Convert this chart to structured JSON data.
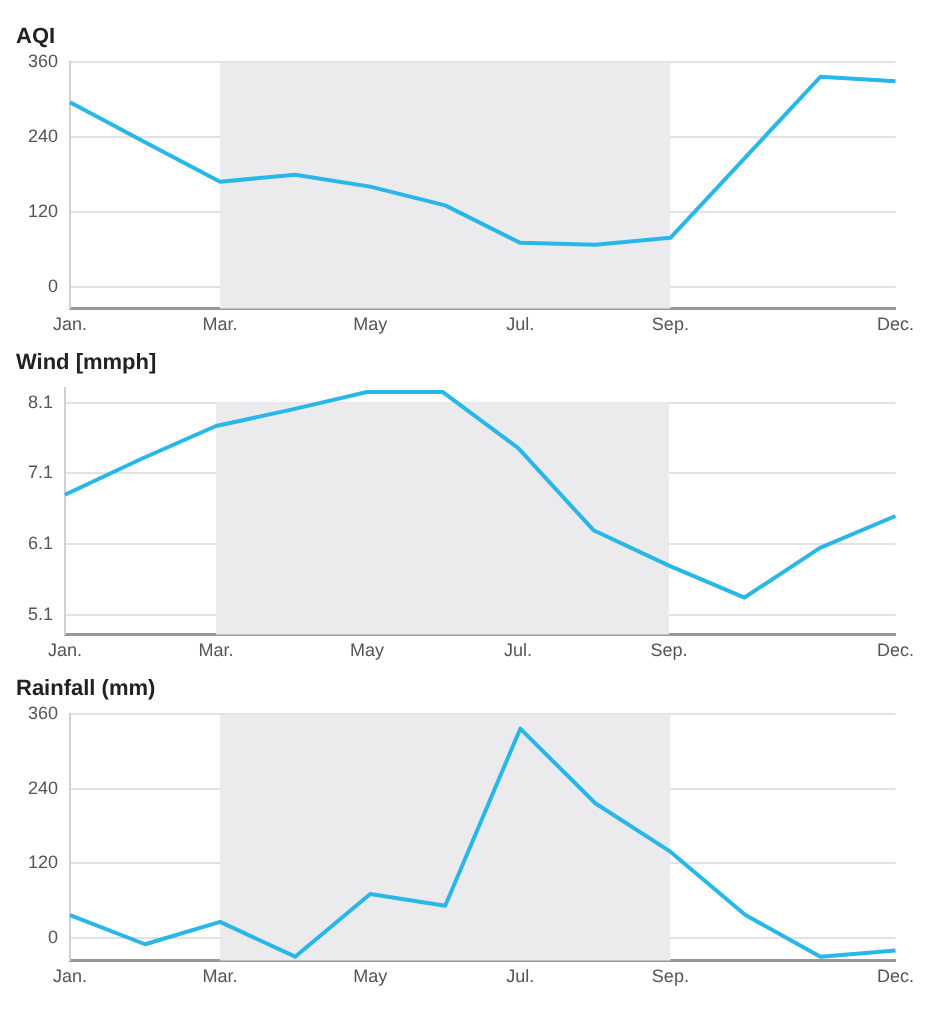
{
  "chart_data": [
    {
      "type": "line",
      "title": "AQI",
      "categories": [
        "Jan.",
        null,
        "Mar.",
        null,
        "May",
        null,
        "Jul.",
        null,
        "Sep.",
        null,
        null,
        "Dec."
      ],
      "series": [
        {
          "color": "#29b6e8",
          "values": [
            296,
            232,
            169,
            180,
            161,
            131,
            71,
            68,
            79,
            208,
            337,
            330
          ]
        }
      ],
      "ylim": [
        -34,
        360
      ],
      "yticks": [
        0,
        120,
        240,
        360
      ],
      "grid": "y",
      "legend": false,
      "marker": "none",
      "line_style": "solid",
      "bands": [
        {
          "axis": "x",
          "from": "Mar.",
          "to": "Sep.",
          "color": "#ebebed"
        }
      ]
    },
    {
      "type": "line",
      "title": "Wind [mmph]",
      "categories": [
        "Jan.",
        null,
        "Mar.",
        null,
        "May",
        null,
        "Jul.",
        null,
        "Sep.",
        null,
        null,
        "Dec."
      ],
      "series": [
        {
          "color": "#29b6e8",
          "values": [
            6.8,
            7.3,
            7.77,
            8.0,
            8.25,
            8.25,
            7.46,
            6.3,
            5.8,
            5.35,
            6.05,
            6.5
          ]
        }
      ],
      "ylim": [
        4.83,
        8.3
      ],
      "yticks": [
        5.1,
        6.1,
        7.1,
        8.1
      ],
      "grid": "y",
      "legend": false,
      "marker": "none",
      "line_style": "solid",
      "bands": [
        {
          "axis": "x",
          "from": "Mar.",
          "to": "Sep.",
          "color": "#ebebed"
        }
      ]
    },
    {
      "type": "line",
      "title": "Rainfall (mm)",
      "categories": [
        "Jan.",
        null,
        "Mar.",
        null,
        "May",
        null,
        "Jul.",
        null,
        "Sep.",
        null,
        null,
        "Dec."
      ],
      "series": [
        {
          "color": "#29b6e8",
          "values": [
            37,
            -10,
            26,
            -30,
            71,
            52,
            337,
            217,
            139,
            37,
            -30,
            -20
          ]
        }
      ],
      "ylim": [
        -36,
        360
      ],
      "yticks": [
        0,
        120,
        240,
        360
      ],
      "grid": "y",
      "legend": false,
      "marker": "none",
      "line_style": "solid",
      "bands": [
        {
          "axis": "x",
          "from": "Mar.",
          "to": "Sep.",
          "color": "#ebebed"
        }
      ]
    }
  ]
}
